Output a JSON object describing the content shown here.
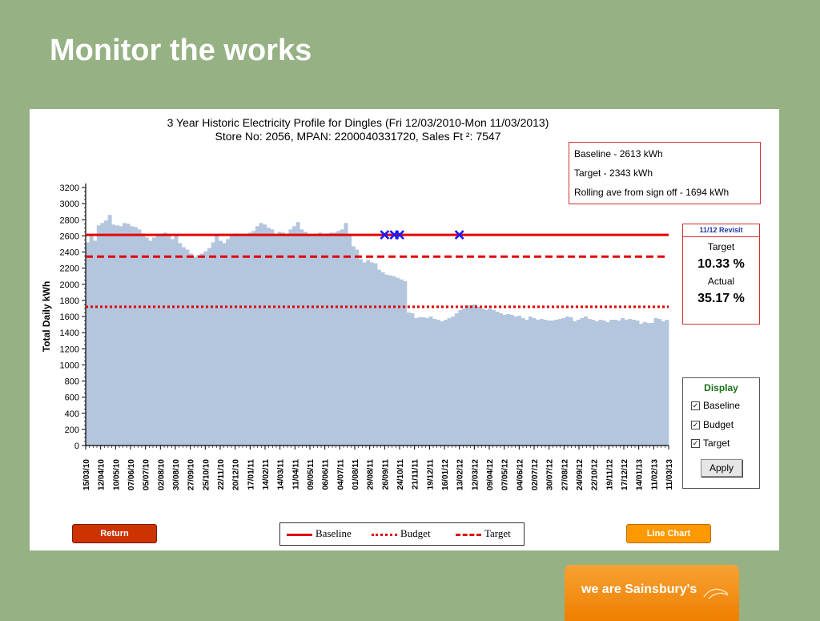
{
  "slide": {
    "title": "Monitor the works"
  },
  "chart_data": {
    "type": "bar",
    "title": "3 Year Historic Electricity Profile for Dingles (Fri 12/03/2010-Mon 11/03/2013)",
    "subtitle": "Store No: 2056,   MPAN: 2200040331720, Sales Ft ²: 7547",
    "ylabel": "Total Daily kWh",
    "ylim": [
      0,
      3200
    ],
    "yticks": [
      0,
      200,
      400,
      600,
      800,
      1000,
      1200,
      1400,
      1600,
      1800,
      2000,
      2200,
      2400,
      2600,
      2800,
      3000,
      3200
    ],
    "x_tick_labels": [
      "15/03/10",
      "12/04/10",
      "10/05/10",
      "07/06/10",
      "05/07/10",
      "02/08/10",
      "30/08/10",
      "27/09/10",
      "25/10/10",
      "22/11/10",
      "20/12/10",
      "17/01/11",
      "14/02/11",
      "14/03/11",
      "11/04/11",
      "09/05/11",
      "06/06/11",
      "04/07/11",
      "01/08/11",
      "29/08/11",
      "26/09/11",
      "24/10/11",
      "21/11/11",
      "19/12/11",
      "16/01/12",
      "13/02/12",
      "12/03/12",
      "09/04/12",
      "07/05/12",
      "04/06/12",
      "02/07/12",
      "30/07/12",
      "27/08/12",
      "24/09/12",
      "22/10/12",
      "19/11/12",
      "17/12/12",
      "14/01/13",
      "11/02/13",
      "11/03/13"
    ],
    "grid": false,
    "bar_color": "#b4c6de",
    "weekly_profile_kwh": [
      2520,
      2620,
      2540,
      2730,
      2760,
      2790,
      2860,
      2740,
      2730,
      2720,
      2760,
      2750,
      2720,
      2710,
      2680,
      2630,
      2580,
      2540,
      2580,
      2610,
      2620,
      2640,
      2620,
      2560,
      2620,
      2510,
      2460,
      2430,
      2380,
      2340,
      2360,
      2380,
      2410,
      2450,
      2520,
      2600,
      2540,
      2510,
      2560,
      2600,
      2630,
      2620,
      2600,
      2610,
      2640,
      2660,
      2720,
      2760,
      2740,
      2700,
      2680,
      2620,
      2650,
      2640,
      2620,
      2680,
      2720,
      2770,
      2680,
      2650,
      2620,
      2600,
      2620,
      2640,
      2620,
      2630,
      2640,
      2640,
      2660,
      2680,
      2760,
      2600,
      2470,
      2430,
      2310,
      2270,
      2300,
      2270,
      2260,
      2180,
      2150,
      2120,
      2110,
      2100,
      2080,
      2060,
      2040,
      1650,
      1640,
      1580,
      1590,
      1590,
      1580,
      1600,
      1570,
      1560,
      1540,
      1560,
      1580,
      1600,
      1640,
      1680,
      1700,
      1740,
      1740,
      1750,
      1720,
      1700,
      1680,
      1700,
      1680,
      1660,
      1640,
      1620,
      1630,
      1620,
      1600,
      1610,
      1580,
      1560,
      1600,
      1580,
      1560,
      1570,
      1560,
      1550,
      1550,
      1560,
      1570,
      1580,
      1600,
      1590,
      1540,
      1560,
      1580,
      1600,
      1570,
      1560,
      1540,
      1560,
      1550,
      1530,
      1560,
      1560,
      1550,
      1580,
      1560,
      1570,
      1560,
      1550,
      1510,
      1530,
      1520,
      1520,
      1580,
      1570,
      1540,
      1560
    ],
    "reference_lines": [
      {
        "name": "Baseline",
        "value": 2613,
        "color": "#e00000",
        "style": "solid"
      },
      {
        "name": "Target",
        "value": 2343,
        "color": "#e00000",
        "style": "dashed"
      },
      {
        "name": "Budget",
        "value": 1720,
        "color": "#e00000",
        "style": "dotted"
      }
    ],
    "markers": [
      {
        "x": "26/09/11",
        "y": 2613,
        "symbol": "x",
        "color": "#1a1aff"
      },
      {
        "x": "14/10/11",
        "y": 2613,
        "symbol": "x",
        "color": "#1a1aff"
      },
      {
        "x": "24/10/11",
        "y": 2613,
        "symbol": "x",
        "color": "#1a1aff"
      },
      {
        "x": "13/02/12",
        "y": 2613,
        "symbol": "x",
        "color": "#1a1aff"
      }
    ]
  },
  "info_box": {
    "baseline": "Baseline - 2613 kWh",
    "target": "Target - 2343 kWh",
    "rolling": "Rolling ave from sign off - 1694 kWh"
  },
  "revisit_box": {
    "header": "11/12 Revisit",
    "target_label": "Target",
    "target_value": "10.33 %",
    "actual_label": "Actual",
    "actual_value": "35.17 %"
  },
  "display_panel": {
    "header": "Display",
    "options": [
      {
        "label": "Baseline",
        "checked": true
      },
      {
        "label": "Budget",
        "checked": true
      },
      {
        "label": "Target",
        "checked": true
      }
    ],
    "apply_label": "Apply"
  },
  "buttons": {
    "return": "Return",
    "line_chart": "Line Chart"
  },
  "legend": {
    "baseline": "Baseline",
    "budget": "Budget",
    "target": "Target"
  },
  "brand": {
    "logo_text": "we are Sainsbury's"
  }
}
